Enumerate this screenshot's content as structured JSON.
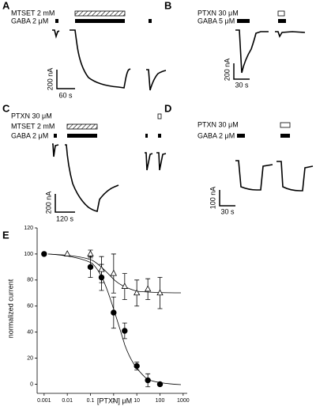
{
  "panels": [
    {
      "label": "A",
      "rows": [
        "MTSET 2 mM",
        "GABA 2 μM"
      ],
      "scale": [
        "200 nA",
        "60 s"
      ]
    },
    {
      "label": "B",
      "rows": [
        "PTXN 30 μM",
        "GABA 5 μM"
      ],
      "scale": [
        "200 nA",
        "30 s"
      ]
    },
    {
      "label": "C",
      "rows": [
        "PTXN 30 μM",
        "MTSET 2 mM",
        "GABA 2 μM"
      ],
      "scale": [
        "200 nA",
        "120 s"
      ]
    },
    {
      "label": "D",
      "rows": [
        "PTXN 30 μM",
        "GABA 2 μM"
      ],
      "scale": [
        "100 nA",
        "30 s"
      ]
    }
  ],
  "chart_data": {
    "type": "scatter",
    "label": "E",
    "xlabel": "[PTXN] μM",
    "ylabel": "normalized current",
    "xlog": true,
    "xlim": [
      0.0005,
      1500
    ],
    "xticks": [
      0.001,
      0.01,
      0.1,
      1,
      10,
      100,
      1000
    ],
    "ylim": [
      -7,
      120
    ],
    "yticks": [
      0,
      20,
      40,
      60,
      80,
      100,
      120
    ],
    "series": [
      {
        "marker": "circle",
        "color": "#000000",
        "x": [
          0.001,
          0.1,
          0.3,
          1,
          3,
          10,
          30,
          100
        ],
        "values": [
          100,
          90,
          82,
          55,
          41,
          14,
          3,
          0
        ],
        "errors": [
          null,
          8,
          10,
          12,
          6,
          3,
          5,
          null
        ]
      },
      {
        "marker": "triangle",
        "color": "#ffffff",
        "x": [
          0.01,
          0.1,
          0.3,
          1,
          3,
          10,
          30,
          100
        ],
        "values": [
          100,
          100,
          88,
          85,
          75,
          70,
          73,
          70
        ],
        "errors": [
          null,
          3,
          10,
          15,
          10,
          10,
          8,
          12
        ]
      }
    ]
  }
}
